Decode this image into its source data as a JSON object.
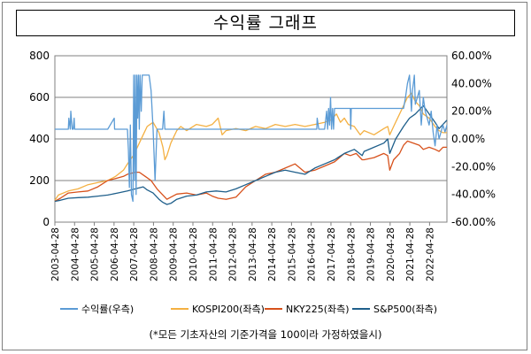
{
  "chart_data": {
    "type": "line",
    "title": "수익률 그래프",
    "note": "(*모든 기초자산의 기준가격을 100이라 가정하였을시)",
    "left_axis": {
      "ticks": [
        "0",
        "200",
        "400",
        "600",
        "800"
      ],
      "min": 0,
      "max": 800
    },
    "right_axis": {
      "ticks": [
        "-60.00%",
        "-40.00%",
        "-20.00%",
        "0.00%",
        "20.00%",
        "40.00%",
        "60.00%"
      ],
      "min": -60,
      "max": 60
    },
    "x_ticks": [
      "2003-04-28",
      "2004-04-28",
      "2005-04-28",
      "2006-04-28",
      "2007-04-28",
      "2008-04-28",
      "2009-04-28",
      "2010-04-28",
      "2011-04-28",
      "2012-04-28",
      "2013-04-28",
      "2014-04-28",
      "2015-04-28",
      "2016-04-28",
      "2017-04-28",
      "2018-04-28",
      "2019-04-28",
      "2020-04-28",
      "2021-04-28",
      "2022-04-28"
    ],
    "x_start": 2003.32,
    "x_end": 2023.2,
    "grid": "horizontal",
    "legend_position": "bottom",
    "series": [
      {
        "name": "수익률(우측)",
        "axis": "right",
        "color": "#5b9bd5",
        "x": [
          2003.32,
          2004.0,
          2004.03,
          2004.1,
          2004.13,
          2004.2,
          2004.25,
          2004.3,
          2004.32,
          2005.0,
          2006.0,
          2006.33,
          2006.35,
          2006.4,
          2007.0,
          2007.05,
          2007.1,
          2007.15,
          2007.2,
          2007.28,
          2007.32,
          2007.36,
          2007.4,
          2007.44,
          2007.48,
          2007.52,
          2007.56,
          2007.6,
          2007.64,
          2007.7,
          2007.75,
          2007.8,
          2007.85,
          2007.9,
          2007.95,
          2008.0,
          2008.05,
          2008.1,
          2008.2,
          2008.3,
          2008.4,
          2008.5,
          2008.6,
          2008.7,
          2008.78,
          2008.85,
          2008.9,
          2009.0,
          2010.0,
          2011.0,
          2012.0,
          2013.0,
          2013.4,
          2013.45,
          2013.55,
          2014.0,
          2015.0,
          2016.0,
          2016.6,
          2016.62,
          2016.7,
          2017.0,
          2017.1,
          2017.15,
          2017.2,
          2017.25,
          2017.3,
          2017.35,
          2017.4,
          2017.45,
          2017.5,
          2017.6,
          2017.7,
          2017.9,
          2018.0,
          2018.1,
          2018.2,
          2018.3,
          2018.32,
          2018.35,
          2018.5,
          2018.6,
          2019.0,
          2019.1,
          2019.2,
          2019.3,
          2019.5,
          2020.0,
          2020.1,
          2020.15,
          2020.2,
          2020.3,
          2020.4,
          2020.6,
          2020.8,
          2021.0,
          2021.1,
          2021.2,
          2021.3,
          2021.4,
          2021.45,
          2021.5,
          2021.55,
          2021.6,
          2021.7,
          2021.8,
          2021.9,
          2022.0,
          2022.1,
          2022.2,
          2022.3,
          2022.4,
          2022.5,
          2022.6,
          2022.7,
          2022.8,
          2022.9,
          2023.0,
          2023.1,
          2023.2
        ],
        "y": [
          7,
          7,
          15,
          7,
          20,
          7,
          7,
          15,
          7,
          7,
          7,
          15,
          7,
          7,
          7,
          -8,
          -35,
          10,
          -40,
          -45,
          46,
          -30,
          46,
          -40,
          46,
          15,
          46,
          7,
          46,
          20,
          46,
          46,
          46,
          46,
          46,
          46,
          46,
          46,
          35,
          7,
          -30,
          7,
          7,
          7,
          7,
          20,
          7,
          7,
          7,
          7,
          7,
          7,
          7,
          7,
          7,
          7,
          7,
          7,
          7,
          15,
          7,
          7,
          20,
          7,
          22,
          10,
          30,
          7,
          22,
          7,
          22,
          22,
          22,
          22,
          22,
          22,
          22,
          22,
          7,
          22,
          22,
          22,
          22,
          22,
          22,
          22,
          22,
          22,
          22,
          22,
          22,
          22,
          22,
          22,
          22,
          22,
          30,
          40,
          46,
          20,
          35,
          40,
          46,
          25,
          30,
          35,
          10,
          30,
          20,
          15,
          10,
          20,
          5,
          -5,
          10,
          0,
          5,
          10,
          5,
          10
        ]
      },
      {
        "name": "KOSPI200(좌측)",
        "axis": "left",
        "color": "#f4b042",
        "x": [
          2003.32,
          2003.5,
          2004.0,
          2004.5,
          2005.0,
          2005.5,
          2006.0,
          2006.4,
          2006.8,
          2007.0,
          2007.3,
          2007.6,
          2007.8,
          2008.0,
          2008.3,
          2008.6,
          2008.8,
          2008.9,
          2009.0,
          2009.2,
          2009.5,
          2009.7,
          2010.0,
          2010.5,
          2011.0,
          2011.3,
          2011.6,
          2011.8,
          2012.0,
          2012.5,
          2013.0,
          2013.5,
          2014.0,
          2014.5,
          2015.0,
          2015.5,
          2016.0,
          2016.5,
          2017.0,
          2017.3,
          2017.6,
          2017.8,
          2018.0,
          2018.2,
          2018.5,
          2018.8,
          2019.0,
          2019.5,
          2020.0,
          2020.2,
          2020.3,
          2020.5,
          2020.8,
          2021.0,
          2021.2,
          2021.4,
          2021.6,
          2021.8,
          2022.0,
          2022.3,
          2022.6,
          2022.8,
          2023.0,
          2023.2
        ],
        "y": [
          105,
          130,
          150,
          160,
          180,
          190,
          200,
          220,
          250,
          280,
          320,
          380,
          420,
          460,
          480,
          430,
          360,
          300,
          320,
          380,
          440,
          460,
          440,
          470,
          460,
          470,
          500,
          420,
          440,
          450,
          440,
          460,
          450,
          470,
          460,
          470,
          460,
          470,
          480,
          490,
          520,
          480,
          500,
          470,
          460,
          420,
          440,
          420,
          450,
          460,
          420,
          460,
          520,
          560,
          600,
          620,
          580,
          560,
          520,
          500,
          460,
          440,
          430,
          430
        ]
      },
      {
        "name": "NKY225(좌측)",
        "axis": "left",
        "color": "#d7511b",
        "x": [
          2003.32,
          2003.6,
          2004.0,
          2004.5,
          2005.0,
          2005.5,
          2006.0,
          2006.4,
          2006.8,
          2007.0,
          2007.4,
          2007.6,
          2007.9,
          2008.2,
          2008.5,
          2008.8,
          2009.0,
          2009.2,
          2009.5,
          2010.0,
          2010.5,
          2011.0,
          2011.3,
          2011.6,
          2012.0,
          2012.5,
          2013.0,
          2013.5,
          2014.0,
          2014.5,
          2015.0,
          2015.5,
          2016.0,
          2016.5,
          2017.0,
          2017.5,
          2018.0,
          2018.3,
          2018.6,
          2018.9,
          2019.0,
          2019.5,
          2020.0,
          2020.2,
          2020.3,
          2020.5,
          2020.8,
          2021.0,
          2021.2,
          2021.5,
          2021.8,
          2022.0,
          2022.3,
          2022.6,
          2022.8,
          2023.0,
          2023.2
        ],
        "y": [
          100,
          115,
          140,
          145,
          150,
          170,
          200,
          210,
          220,
          230,
          240,
          240,
          220,
          200,
          160,
          130,
          110,
          120,
          135,
          140,
          130,
          140,
          125,
          115,
          110,
          120,
          170,
          200,
          230,
          240,
          260,
          280,
          240,
          250,
          270,
          290,
          330,
          320,
          330,
          300,
          300,
          310,
          330,
          320,
          250,
          300,
          330,
          370,
          390,
          380,
          370,
          350,
          360,
          350,
          340,
          360,
          360
        ]
      },
      {
        "name": "S&P500(좌측)",
        "axis": "left",
        "color": "#1f5f8b",
        "x": [
          2003.32,
          2003.6,
          2004.0,
          2004.5,
          2005.0,
          2005.5,
          2006.0,
          2006.5,
          2007.0,
          2007.4,
          2007.8,
          2008.0,
          2008.3,
          2008.6,
          2008.8,
          2009.0,
          2009.2,
          2009.5,
          2010.0,
          2010.5,
          2011.0,
          2011.5,
          2012.0,
          2012.5,
          2013.0,
          2013.5,
          2014.0,
          2014.5,
          2015.0,
          2015.5,
          2016.0,
          2016.5,
          2017.0,
          2017.5,
          2018.0,
          2018.5,
          2018.9,
          2019.0,
          2019.5,
          2020.0,
          2020.2,
          2020.3,
          2020.6,
          2021.0,
          2021.3,
          2021.6,
          2021.9,
          2022.0,
          2022.3,
          2022.6,
          2022.8,
          2023.0,
          2023.2
        ],
        "y": [
          100,
          105,
          115,
          118,
          120,
          125,
          130,
          140,
          150,
          160,
          170,
          155,
          140,
          110,
          95,
          85,
          90,
          110,
          125,
          130,
          145,
          150,
          145,
          160,
          180,
          200,
          220,
          240,
          250,
          240,
          230,
          260,
          280,
          300,
          330,
          350,
          320,
          340,
          360,
          380,
          400,
          330,
          400,
          460,
          500,
          520,
          550,
          560,
          520,
          480,
          450,
          470,
          490
        ]
      }
    ]
  }
}
